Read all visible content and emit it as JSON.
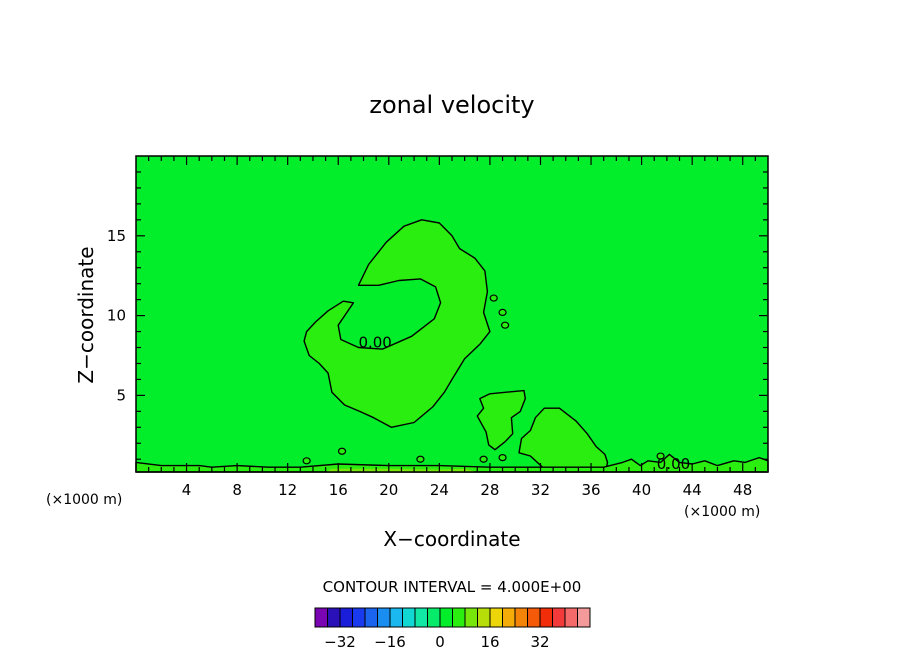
{
  "chart_data": {
    "type": "contour",
    "title": "zonal velocity",
    "xlabel": "X−coordinate",
    "ylabel": "Z−coordinate",
    "x_unit": "(×1000 m)",
    "y_unit": "(×1000 m)",
    "xlim": [
      0,
      50
    ],
    "ylim": [
      0.2,
      20
    ],
    "x_ticks": [
      4,
      8,
      12,
      16,
      20,
      24,
      28,
      32,
      36,
      40,
      44,
      48
    ],
    "x_tick_labels": [
      "4",
      "8",
      "12",
      "16",
      "20",
      "24",
      "28",
      "32",
      "36",
      "40",
      "44",
      "48"
    ],
    "y_ticks": [
      5,
      10,
      15
    ],
    "y_tick_labels": [
      "5",
      "10",
      "15"
    ],
    "background_level": -2,
    "contour_labels": [
      {
        "text": "0.00",
        "x": 17.6,
        "y": 8.3
      },
      {
        "text": "0.00",
        "x": 41.2,
        "y": 0.7
      }
    ],
    "regions": [
      {
        "name": "upper-shell",
        "level": 2,
        "points": [
          [
            13.3,
            8.4
          ],
          [
            13.5,
            9.0
          ],
          [
            14.2,
            9.6
          ],
          [
            15.2,
            10.3
          ],
          [
            16.4,
            10.9
          ],
          [
            17.2,
            10.8
          ],
          [
            16.6,
            10.1
          ],
          [
            16.0,
            9.4
          ],
          [
            16.2,
            8.5
          ],
          [
            17.6,
            8.0
          ],
          [
            19.5,
            7.9
          ],
          [
            21.8,
            8.7
          ],
          [
            23.6,
            9.8
          ],
          [
            24.1,
            10.8
          ],
          [
            23.7,
            11.8
          ],
          [
            22.5,
            12.3
          ],
          [
            20.8,
            12.2
          ],
          [
            19.2,
            11.9
          ],
          [
            17.6,
            11.9
          ],
          [
            18.4,
            13.2
          ],
          [
            19.8,
            14.6
          ],
          [
            21.2,
            15.6
          ],
          [
            22.6,
            16.0
          ],
          [
            24.0,
            15.8
          ],
          [
            25.0,
            15.0
          ],
          [
            25.6,
            14.2
          ],
          [
            26.8,
            13.6
          ],
          [
            27.6,
            12.8
          ],
          [
            27.8,
            11.5
          ],
          [
            27.5,
            10.2
          ],
          [
            28.0,
            9.0
          ],
          [
            27.2,
            8.2
          ],
          [
            26.0,
            7.3
          ],
          [
            25.0,
            6.0
          ],
          [
            24.4,
            5.2
          ],
          [
            23.5,
            4.3
          ],
          [
            22.0,
            3.3
          ],
          [
            20.2,
            3.0
          ],
          [
            18.8,
            3.6
          ],
          [
            17.7,
            4.0
          ],
          [
            16.5,
            4.4
          ],
          [
            15.5,
            5.2
          ],
          [
            15.2,
            6.4
          ],
          [
            14.5,
            7.0
          ],
          [
            13.7,
            7.5
          ]
        ]
      },
      {
        "name": "middle-patch",
        "level": 2,
        "points": [
          [
            27.2,
            4.8
          ],
          [
            28.0,
            5.1
          ],
          [
            29.3,
            5.2
          ],
          [
            30.7,
            5.3
          ],
          [
            30.8,
            4.8
          ],
          [
            30.4,
            4.0
          ],
          [
            29.7,
            3.6
          ],
          [
            29.8,
            2.6
          ],
          [
            29.2,
            2.1
          ],
          [
            28.4,
            1.6
          ],
          [
            27.9,
            1.9
          ],
          [
            27.7,
            2.7
          ],
          [
            27.0,
            3.7
          ],
          [
            27.5,
            4.2
          ]
        ]
      },
      {
        "name": "right-patch",
        "level": 2,
        "points": [
          [
            31.2,
            2.8
          ],
          [
            31.6,
            3.6
          ],
          [
            32.3,
            4.2
          ],
          [
            33.5,
            4.2
          ],
          [
            34.8,
            3.4
          ],
          [
            35.7,
            2.6
          ],
          [
            36.4,
            1.8
          ],
          [
            37.1,
            1.3
          ],
          [
            37.3,
            0.8
          ],
          [
            37.2,
            0.4
          ],
          [
            36.2,
            0.3
          ],
          [
            34.5,
            0.3
          ],
          [
            33.0,
            0.5
          ],
          [
            32.3,
            0.4
          ],
          [
            31.2,
            1.2
          ],
          [
            30.3,
            1.4
          ],
          [
            30.5,
            2.3
          ]
        ]
      },
      {
        "name": "near-surface-band",
        "level": 2,
        "points": [
          [
            0,
            0.2
          ],
          [
            0,
            0.8
          ],
          [
            2.0,
            0.6
          ],
          [
            5.0,
            0.6
          ],
          [
            6.0,
            0.5
          ],
          [
            8.0,
            0.6
          ],
          [
            10.5,
            0.5
          ],
          [
            13.0,
            0.5
          ],
          [
            16.0,
            0.7
          ],
          [
            20.0,
            0.6
          ],
          [
            24.0,
            0.6
          ],
          [
            28.0,
            0.5
          ],
          [
            33.0,
            0.5
          ],
          [
            37.0,
            0.5
          ],
          [
            38.5,
            0.8
          ],
          [
            39.2,
            1.0
          ],
          [
            39.9,
            0.6
          ],
          [
            40.5,
            0.9
          ],
          [
            41.5,
            0.8
          ],
          [
            42.2,
            1.3
          ],
          [
            43.0,
            0.8
          ],
          [
            44.0,
            0.7
          ],
          [
            45.0,
            0.9
          ],
          [
            46.0,
            0.6
          ],
          [
            47.3,
            0.9
          ],
          [
            48.2,
            0.8
          ],
          [
            49.3,
            1.1
          ],
          [
            50,
            0.9
          ],
          [
            50,
            0.2
          ]
        ]
      },
      {
        "name": "surface-strip",
        "level": 6,
        "points": [
          [
            15.0,
            0.2
          ],
          [
            15.5,
            0.4
          ],
          [
            20.0,
            0.4
          ],
          [
            24.0,
            0.35
          ],
          [
            26.0,
            0.4
          ],
          [
            27.0,
            0.2
          ]
        ]
      }
    ],
    "small_contours": [
      [
        28.3,
        11.1
      ],
      [
        29.0,
        10.2
      ],
      [
        29.2,
        9.4
      ],
      [
        13.5,
        0.9
      ],
      [
        16.3,
        1.5
      ],
      [
        22.5,
        1.0
      ],
      [
        27.5,
        1.0
      ],
      [
        29.0,
        1.1
      ],
      [
        41.5,
        1.2
      ]
    ],
    "colorbar": {
      "levels": [
        -34,
        -30,
        -26,
        -22,
        -18,
        -14,
        -10,
        -6,
        -2,
        2,
        6,
        10,
        14,
        18,
        22,
        26,
        30,
        34
      ],
      "colors": [
        "#7a06b3",
        "#2a10b8",
        "#1b1ed8",
        "#1a3af0",
        "#1a64f0",
        "#1a8ef0",
        "#1ab8ee",
        "#12d8d4",
        "#11e8a6",
        "#06ec6a",
        "#02ee2a",
        "#29ee10",
        "#76e60b",
        "#b8de0a",
        "#ecd60a",
        "#f4ad08",
        "#f48408",
        "#f45a08",
        "#f22e0a",
        "#f23a3a",
        "#f46a6a",
        "#f49a9a"
      ],
      "tick_values": [
        -32,
        -16,
        0,
        16,
        32
      ],
      "tick_labels": [
        "−32",
        "−16",
        "0",
        "16",
        "32"
      ]
    },
    "contour_interval_text": "CONTOUR INTERVAL = 4.000E+00"
  }
}
